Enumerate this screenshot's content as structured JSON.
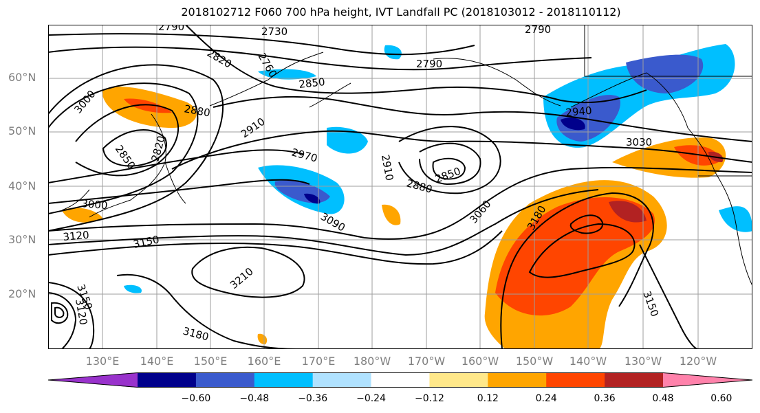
{
  "title": "2018102712 F060 700 hPa height, IVT Landfall PC (2018103012 - 2018110112)",
  "lat_labels": [
    "60°N",
    "50°N",
    "40°N",
    "30°N",
    "20°N"
  ],
  "lon_labels": [
    "130°E",
    "140°E",
    "150°E",
    "160°E",
    "170°E",
    "180°W",
    "170°W",
    "160°W",
    "150°W",
    "140°W",
    "130°W",
    "120°W"
  ],
  "contour_labels": [
    "2790",
    "2730",
    "2790",
    "2820",
    "2760",
    "2790",
    "2850",
    "2880",
    "2910",
    "2940",
    "3030",
    "3000",
    "2850",
    "2820",
    "2970",
    "2910",
    "2880",
    "2850",
    "3000",
    "3090",
    "3060",
    "3180",
    "3120",
    "3150",
    "3210",
    "3150",
    "3120",
    "3180",
    "3150"
  ],
  "colorbar": {
    "ticks": [
      "−0.60",
      "−0.48",
      "−0.36",
      "−0.24",
      "−0.12",
      "0.12",
      "0.24",
      "0.36",
      "0.48",
      "0.60"
    ],
    "colors": [
      "#9932cc",
      "#00008b",
      "#3a5acd",
      "#00bfff",
      "#b0e2ff",
      "#ffffff",
      "#ffe88a",
      "#ffa500",
      "#ff4500",
      "#b22222",
      "#ff82ab"
    ]
  }
}
